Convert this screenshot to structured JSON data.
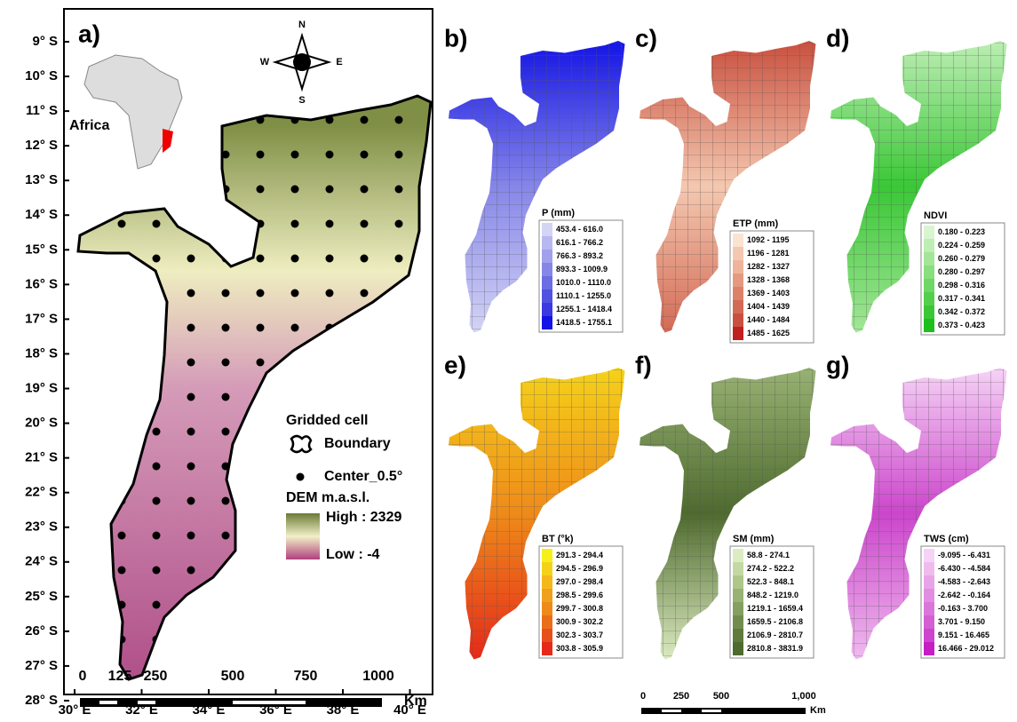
{
  "panel_a": {
    "label": "a)",
    "lat_labels": [
      "9° S",
      "10° S",
      "11° S",
      "12° S",
      "13° S",
      "14° S",
      "15° S",
      "16° S",
      "17° S",
      "18° S",
      "19° S",
      "20° S",
      "21° S",
      "22° S",
      "23° S",
      "24° S",
      "25° S",
      "26° S",
      "27° S",
      "28° S"
    ],
    "lon_labels": [
      "30° E",
      "32° E",
      "34° E",
      "36° E",
      "38° E",
      "40° E"
    ],
    "compass": {
      "n": "N",
      "s": "S",
      "w": "W",
      "e": "E"
    },
    "inset_label": "Africa",
    "legend": {
      "title": "Gridded cell",
      "boundary": "Boundary",
      "center": "Center_0.5°",
      "dem_title": "DEM m.a.s.l.",
      "high": "High : 2329",
      "low": "Low : -4"
    },
    "scale": {
      "ticks": [
        "0",
        "125",
        "250",
        "500",
        "750",
        "1000"
      ],
      "unit": "Km"
    }
  },
  "panels": [
    {
      "label": "b)",
      "legend_title": "P (mm)",
      "classes": [
        "453.4 - 616.0",
        "616.1 - 766.2",
        "766.3 - 893.2",
        "893.3 - 1009.9",
        "1010.0 - 1110.0",
        "1110.1 - 1255.0",
        "1255.1 - 1418.4",
        "1418.5 - 1755.1"
      ],
      "colors": [
        "#d4d4f5",
        "#b8b8f0",
        "#a0a0ec",
        "#8686e8",
        "#6c6ce4",
        "#5252e0",
        "#3a3ae0",
        "#1414e6"
      ]
    },
    {
      "label": "c)",
      "legend_title": "ETP (mm)",
      "classes": [
        "1092 - 1195",
        "1196 - 1281",
        "1282 - 1327",
        "1328 - 1368",
        "1369 - 1403",
        "1404 - 1439",
        "1440 - 1484",
        "1485 - 1625"
      ],
      "colors": [
        "#fbe3d2",
        "#f4c8b0",
        "#eeb39a",
        "#e59a80",
        "#dc826a",
        "#d36a55",
        "#c9503f",
        "#c01f1f"
      ]
    },
    {
      "label": "d)",
      "legend_title": "NDVI",
      "classes": [
        "0.180 - 0.223",
        "0.224 - 0.259",
        "0.260 - 0.279",
        "0.280 - 0.297",
        "0.298 - 0.316",
        "0.317 - 0.341",
        "0.342 - 0.372",
        "0.373 - 0.423"
      ],
      "colors": [
        "#d8f5d0",
        "#bdeeb4",
        "#a3e698",
        "#88df7e",
        "#6ed765",
        "#54cf4c",
        "#3ac736",
        "#1cbf1c"
      ]
    },
    {
      "label": "e)",
      "legend_title": "BT (°k)",
      "classes": [
        "291.3 - 294.4",
        "294.5 - 296.9",
        "297.0 - 298.4",
        "298.5 - 299.6",
        "299.7 - 300.8",
        "300.9 - 302.2",
        "302.3 - 303.7",
        "303.8 - 305.9"
      ],
      "colors": [
        "#f5ef1a",
        "#f5d21a",
        "#f5b81a",
        "#f0a01a",
        "#ee8a1a",
        "#ea6e1a",
        "#e8501a",
        "#e52a1a"
      ]
    },
    {
      "label": "f)",
      "legend_title": "SM (mm)",
      "classes": [
        "58.8 - 274.1",
        "274.2 - 522.2",
        "522.3 - 848.1",
        "848.2 - 1219.0",
        "1219.1 - 1659.4",
        "1659.5 - 2106.8",
        "2106.9 - 2810.7",
        "2810.8 - 3831.9"
      ],
      "colors": [
        "#dcebc0",
        "#c3d9a3",
        "#aec68a",
        "#98b273",
        "#849f5f",
        "#718c4d",
        "#5e7a3d",
        "#4e6a2e"
      ]
    },
    {
      "label": "g)",
      "legend_title": "TWS (cm)",
      "classes": [
        "-9.095 - -6.431",
        "-6.430 - -4.584",
        "-4.583 - -2.643",
        "-2.642 - -0.164",
        "-0.163 - 3.700",
        "3.701 - 9.150",
        "9.151 - 16.465",
        "16.466 - 29.012"
      ],
      "colors": [
        "#f6d3f6",
        "#efbbef",
        "#e8a4e8",
        "#e18de1",
        "#da76da",
        "#d35fd3",
        "#cc45cc",
        "#c41ec4"
      ]
    }
  ],
  "scale_bar": {
    "ticks": [
      "0",
      "250",
      "500",
      "1,000"
    ],
    "unit": "Km"
  }
}
